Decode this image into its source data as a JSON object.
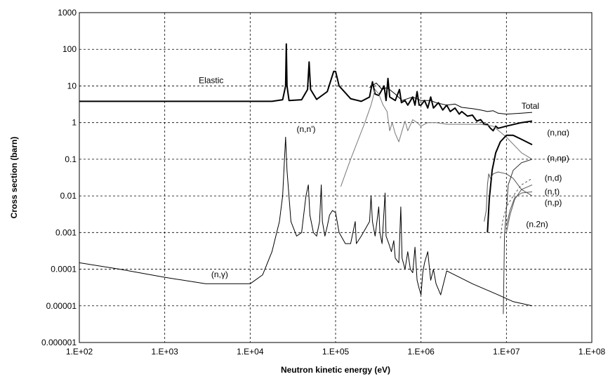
{
  "chart_data": {
    "type": "line",
    "xlabel": "Neutron kinetic energy (eV)",
    "ylabel": "Cross section (barn)",
    "xscale": "log",
    "yscale": "log",
    "xlim": [
      100,
      100000000
    ],
    "ylim": [
      1e-06,
      1000
    ],
    "grid": true,
    "x_tick_labels": [
      "1.E+02",
      "1.E+03",
      "1.E+04",
      "1.E+05",
      "1.E+06",
      "1.E+07",
      "1.E+08"
    ],
    "y_tick_labels": [
      "1000",
      "100",
      "10",
      "1",
      "0.1",
      "0.01",
      "0.001",
      "0.0001",
      "0.00001",
      "0.000001"
    ],
    "series": [
      {
        "name": "Elastic",
        "stroke": "#000000",
        "width": 2,
        "points": [
          [
            100,
            3.8
          ],
          [
            18000,
            3.8
          ],
          [
            24000,
            4.2
          ],
          [
            26000,
            10
          ],
          [
            26500,
            140
          ],
          [
            27000,
            10
          ],
          [
            28500,
            4.0
          ],
          [
            40000,
            4.2
          ],
          [
            47000,
            8
          ],
          [
            49000,
            45
          ],
          [
            51000,
            8
          ],
          [
            60000,
            4.3
          ],
          [
            80000,
            7
          ],
          [
            95000,
            25
          ],
          [
            100000,
            25
          ],
          [
            110000,
            10
          ],
          [
            150000,
            4.5
          ],
          [
            200000,
            3.8
          ],
          [
            250000,
            5
          ],
          [
            270000,
            13
          ],
          [
            290000,
            6
          ],
          [
            320000,
            5.5
          ],
          [
            370000,
            10
          ],
          [
            390000,
            4
          ],
          [
            410000,
            16
          ],
          [
            430000,
            5
          ],
          [
            500000,
            4
          ],
          [
            560000,
            8
          ],
          [
            590000,
            3.5
          ],
          [
            650000,
            4
          ],
          [
            700000,
            3
          ],
          [
            800000,
            5
          ],
          [
            850000,
            3
          ],
          [
            900000,
            7
          ],
          [
            950000,
            3
          ],
          [
            1000000,
            3
          ],
          [
            1100000,
            4
          ],
          [
            1200000,
            2.5
          ],
          [
            1300000,
            5
          ],
          [
            1400000,
            2.5
          ],
          [
            1600000,
            3.5
          ],
          [
            1800000,
            2.2
          ],
          [
            2000000,
            3
          ],
          [
            2200000,
            2
          ],
          [
            2500000,
            2.5
          ],
          [
            2800000,
            1.7
          ],
          [
            3000000,
            2
          ],
          [
            3500000,
            1.5
          ],
          [
            4000000,
            1.6
          ],
          [
            4500000,
            1.1
          ],
          [
            5000000,
            1.2
          ],
          [
            5500000,
            0.9
          ],
          [
            6000000,
            0.9
          ],
          [
            6500000,
            0.7
          ],
          [
            7000000,
            0.6
          ],
          [
            7500000,
            0.8
          ],
          [
            8000000,
            0.7
          ],
          [
            10000000,
            0.8
          ],
          [
            15000000,
            1.0
          ],
          [
            20000000,
            1.1
          ]
        ]
      },
      {
        "name": "Total",
        "stroke": "#000000",
        "width": 1,
        "points": [
          [
            250000,
            9
          ],
          [
            300000,
            12
          ],
          [
            350000,
            8
          ],
          [
            400000,
            9
          ],
          [
            500000,
            6
          ],
          [
            600000,
            4
          ],
          [
            800000,
            5
          ],
          [
            1000000,
            4
          ],
          [
            1300000,
            4
          ],
          [
            1500000,
            3.5
          ],
          [
            2000000,
            3
          ],
          [
            2500000,
            3.2
          ],
          [
            3000000,
            2.6
          ],
          [
            4000000,
            2.4
          ],
          [
            5000000,
            2.2
          ],
          [
            6000000,
            2
          ],
          [
            7000000,
            2.1
          ],
          [
            8000000,
            1.8
          ],
          [
            10000000,
            1.7
          ],
          [
            15000000,
            1.8
          ],
          [
            20000000,
            1.9
          ]
        ]
      },
      {
        "name": "(n,n')",
        "stroke": "#777777",
        "width": 1,
        "points": [
          [
            115000,
            0.018
          ],
          [
            130000,
            0.04
          ],
          [
            150000,
            0.1
          ],
          [
            180000,
            0.3
          ],
          [
            220000,
            1.0
          ],
          [
            260000,
            3
          ],
          [
            290000,
            8
          ],
          [
            320000,
            6
          ],
          [
            360000,
            3
          ],
          [
            400000,
            2
          ],
          [
            430000,
            0.6
          ],
          [
            460000,
            1
          ],
          [
            500000,
            0.5
          ],
          [
            550000,
            0.3
          ],
          [
            600000,
            0.6
          ],
          [
            650000,
            1.1
          ],
          [
            700000,
            0.6
          ],
          [
            800000,
            1.2
          ],
          [
            900000,
            1
          ],
          [
            1000000,
            0.8
          ],
          [
            1200000,
            1
          ],
          [
            1500000,
            1
          ],
          [
            2000000,
            0.9
          ],
          [
            3000000,
            0.9
          ],
          [
            5000000,
            0.9
          ],
          [
            7000000,
            0.8
          ],
          [
            10000000,
            0.4
          ],
          [
            15000000,
            0.15
          ],
          [
            20000000,
            0.1
          ]
        ]
      },
      {
        "name": "(n,nα)",
        "stroke": "#000000",
        "width": 2,
        "points": [
          [
            6000000,
            0.001
          ],
          [
            6300000,
            0.008
          ],
          [
            6800000,
            0.05
          ],
          [
            7500000,
            0.15
          ],
          [
            8500000,
            0.3
          ],
          [
            10000000,
            0.45
          ],
          [
            12000000,
            0.45
          ],
          [
            15000000,
            0.35
          ],
          [
            20000000,
            0.25
          ]
        ]
      },
      {
        "name": "(n,np)",
        "stroke": "#555555",
        "width": 1,
        "points": [
          [
            5500000,
            0.002
          ],
          [
            5800000,
            0.004
          ],
          [
            6000000,
            0.02
          ],
          [
            6200000,
            0.04
          ],
          [
            6500000,
            0.03
          ],
          [
            7000000,
            0.04
          ],
          [
            8000000,
            0.045
          ],
          [
            10000000,
            0.04
          ],
          [
            12000000,
            0.03
          ],
          [
            15000000,
            0.015
          ],
          [
            20000000,
            0.01
          ]
        ]
      },
      {
        "name": "(n,d)",
        "stroke": "#555555",
        "width": 1,
        "dash": "3 3",
        "points": [
          [
            8500000,
            0.0007
          ],
          [
            9000000,
            0.002
          ],
          [
            10000000,
            0.005
          ],
          [
            12000000,
            0.01
          ],
          [
            15000000,
            0.02
          ],
          [
            20000000,
            0.03
          ]
        ]
      },
      {
        "name": "(n,t)",
        "stroke": "#555555",
        "width": 1,
        "points": [
          [
            10000000,
            0.001
          ],
          [
            11000000,
            0.003
          ],
          [
            12500000,
            0.008
          ],
          [
            15000000,
            0.015
          ],
          [
            20000000,
            0.02
          ]
        ]
      },
      {
        "name": "(n,p)",
        "stroke": "#555555",
        "width": 1,
        "points": [
          [
            10000000,
            0.0015
          ],
          [
            11000000,
            0.004
          ],
          [
            12500000,
            0.009
          ],
          [
            15000000,
            0.012
          ],
          [
            20000000,
            0.013
          ]
        ]
      },
      {
        "name": "(n,2n)",
        "stroke": "#333333",
        "width": 1,
        "points": [
          [
            9200000,
            6e-06
          ],
          [
            9500000,
            0.0008
          ],
          [
            10500000,
            0.02
          ],
          [
            12000000,
            0.05
          ],
          [
            15000000,
            0.08
          ],
          [
            20000000,
            0.1
          ]
        ]
      },
      {
        "name": "(n,γ)",
        "stroke": "#000000",
        "width": 1,
        "points": [
          [
            100,
            0.00015
          ],
          [
            300,
            0.0001
          ],
          [
            1000,
            6e-05
          ],
          [
            3000,
            4e-05
          ],
          [
            10000,
            4e-05
          ],
          [
            14000,
            7e-05
          ],
          [
            18000,
            0.0003
          ],
          [
            22000,
            0.002
          ],
          [
            24000,
            0.01
          ],
          [
            26000,
            0.4
          ],
          [
            27000,
            0.05
          ],
          [
            30000,
            0.002
          ],
          [
            35000,
            0.0008
          ],
          [
            40000,
            0.001
          ],
          [
            45000,
            0.01
          ],
          [
            48000,
            0.02
          ],
          [
            50000,
            0.003
          ],
          [
            55000,
            0.001
          ],
          [
            60000,
            0.0008
          ],
          [
            65000,
            0.002
          ],
          [
            68000,
            0.02
          ],
          [
            70000,
            0.002
          ],
          [
            75000,
            0.0008
          ],
          [
            80000,
            0.0015
          ],
          [
            85000,
            0.003
          ],
          [
            92000,
            0.004
          ],
          [
            100000,
            0.0035
          ],
          [
            110000,
            0.001
          ],
          [
            130000,
            0.0005
          ],
          [
            150000,
            0.0005
          ],
          [
            170000,
            0.002
          ],
          [
            175000,
            0.0005
          ],
          [
            200000,
            0.0008
          ],
          [
            250000,
            0.002
          ],
          [
            260000,
            0.01
          ],
          [
            270000,
            0.002
          ],
          [
            290000,
            0.0008
          ],
          [
            320000,
            0.005
          ],
          [
            330000,
            0.001
          ],
          [
            350000,
            0.0005
          ],
          [
            380000,
            0.012
          ],
          [
            390000,
            0.0008
          ],
          [
            420000,
            0.0005
          ],
          [
            450000,
            0.0003
          ],
          [
            480000,
            0.0006
          ],
          [
            500000,
            0.0002
          ],
          [
            550000,
            0.00015
          ],
          [
            580000,
            0.005
          ],
          [
            600000,
            0.0002
          ],
          [
            650000,
            0.0001
          ],
          [
            700000,
            0.0003
          ],
          [
            750000,
            0.0001
          ],
          [
            800000,
            8e-05
          ],
          [
            850000,
            0.0004
          ],
          [
            900000,
            5e-05
          ],
          [
            950000,
            3e-05
          ],
          [
            1000000,
            2e-05
          ],
          [
            1050000,
            8e-05
          ],
          [
            1100000,
            0.00015
          ],
          [
            1200000,
            0.0003
          ],
          [
            1300000,
            5e-05
          ],
          [
            1400000,
            0.0001
          ],
          [
            1500000,
            4e-05
          ],
          [
            1700000,
            2e-05
          ],
          [
            2000000,
            9e-05
          ],
          [
            4000000,
            4e-05
          ],
          [
            8000000,
            2e-05
          ],
          [
            12000000,
            1.3e-05
          ],
          [
            20000000,
            1e-05
          ]
        ]
      }
    ],
    "labels": [
      {
        "text": "Elastic",
        "x": 2500,
        "y": 12
      },
      {
        "text": "Total",
        "x": 15000000,
        "y": 2.4
      },
      {
        "text": "(n,n')",
        "x": 35000,
        "y": 0.55
      },
      {
        "text": "(n,nα)",
        "x": 30000000,
        "y": 0.45
      },
      {
        "text": "(n,np)",
        "x": 30000000,
        "y": 0.09
      },
      {
        "text": "(n,d)",
        "x": 28000000,
        "y": 0.026
      },
      {
        "text": "(n,t)",
        "x": 28000000,
        "y": 0.011
      },
      {
        "text": "(n,p)",
        "x": 28000000,
        "y": 0.0055
      },
      {
        "text": "(n.2n)",
        "x": 17000000,
        "y": 0.0014
      },
      {
        "text": "(n,γ)",
        "x": 3500,
        "y": 6e-05
      }
    ]
  }
}
